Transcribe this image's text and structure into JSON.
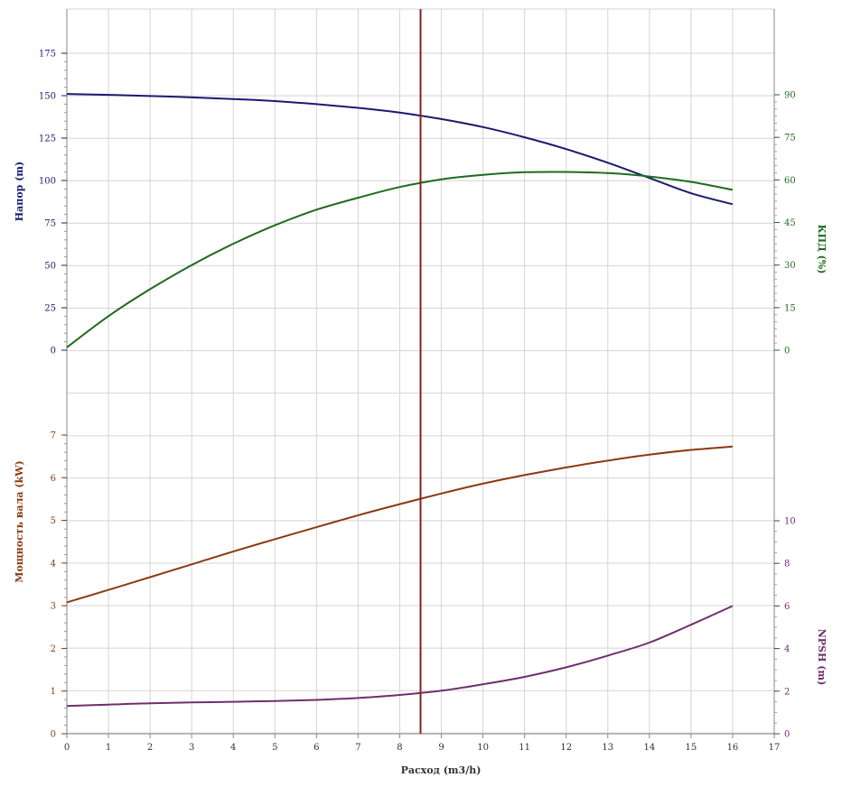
{
  "chart_data": {
    "type": "line",
    "xlabel": "Расход (m3/h)",
    "x_ticks": [
      0,
      1,
      2,
      3,
      4,
      5,
      6,
      7,
      8,
      9,
      10,
      11,
      12,
      13,
      14,
      15,
      16,
      17
    ],
    "xlim": [
      0,
      17
    ],
    "duty_point_x": 8.5,
    "grid": true,
    "colors": {
      "head": "#1b1b6e",
      "efficiency": "#1e6b1e",
      "power": "#8b3a0f",
      "npsh": "#6e2f6e",
      "duty_line": "#8b1f1f",
      "grid": "#d4d4d4"
    },
    "top_panel": {
      "left_axis": {
        "label": "Напор (m)",
        "ylim": [
          0,
          175
        ],
        "ticks": [
          0,
          25,
          50,
          75,
          100,
          125,
          150,
          175
        ]
      },
      "right_axis": {
        "label": "КПД (%)",
        "ylim": [
          0,
          90
        ],
        "ticks": [
          0,
          15,
          30,
          45,
          60,
          75,
          90
        ]
      }
    },
    "bottom_panel": {
      "left_axis": {
        "label": "Мощность вала (kW)",
        "ylim": [
          0,
          7
        ],
        "ticks": [
          0,
          1,
          2,
          3,
          4,
          5,
          6,
          7
        ]
      },
      "right_axis": {
        "label": "NPSH (m)",
        "ylim": [
          0,
          10
        ],
        "ticks": [
          0,
          2,
          4,
          6,
          8,
          10
        ]
      }
    },
    "series": [
      {
        "axis": "top-left",
        "x": [
          0,
          1,
          2,
          3,
          4,
          5,
          6,
          7,
          8,
          9,
          10,
          11,
          12,
          13,
          14,
          15,
          16
        ],
        "values": [
          151,
          150.5,
          149.8,
          149,
          148,
          146.8,
          145,
          142.8,
          140,
          136.2,
          131.5,
          125.5,
          118.5,
          110.5,
          101.5,
          92.5,
          86
        ]
      },
      {
        "axis": "top-right",
        "x": [
          0,
          1,
          2,
          3,
          4,
          5,
          6,
          7,
          8,
          9,
          10,
          11,
          12,
          13,
          14,
          15,
          16
        ],
        "values": [
          1,
          12,
          21.5,
          30,
          37.5,
          44,
          49.5,
          53.7,
          57.5,
          60.2,
          61.8,
          62.7,
          62.8,
          62.4,
          61.2,
          59.3,
          56.5
        ]
      },
      {
        "axis": "bottom-left",
        "x": [
          0,
          1,
          2,
          3,
          4,
          5,
          6,
          7,
          8,
          9,
          10,
          11,
          12,
          13,
          14,
          15,
          16
        ],
        "values": [
          3.08,
          3.37,
          3.67,
          3.97,
          4.27,
          4.56,
          4.84,
          5.12,
          5.38,
          5.63,
          5.86,
          6.06,
          6.24,
          6.4,
          6.54,
          6.65,
          6.73
        ]
      },
      {
        "axis": "bottom-right",
        "x": [
          0,
          1,
          2,
          3,
          4,
          5,
          6,
          7,
          8,
          9,
          10,
          11,
          12,
          13,
          14,
          15,
          16
        ],
        "values": [
          1.3,
          1.37,
          1.43,
          1.47,
          1.5,
          1.54,
          1.59,
          1.68,
          1.82,
          2.02,
          2.32,
          2.67,
          3.12,
          3.67,
          4.28,
          5.12,
          6
        ]
      }
    ]
  }
}
